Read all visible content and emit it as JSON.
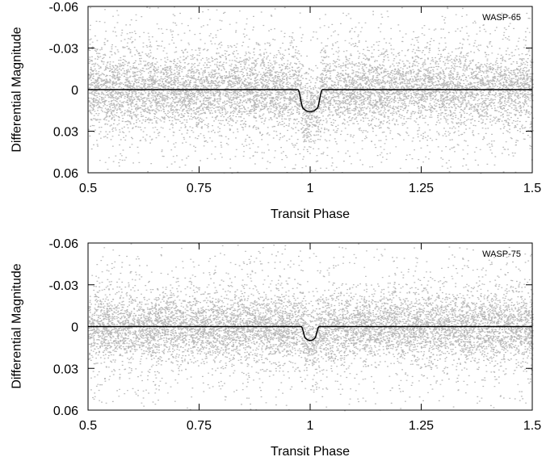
{
  "chart_data": [
    {
      "type": "scatter",
      "title": "",
      "panel_label": "WASP-65",
      "xlabel": "Transit Phase",
      "ylabel": "Differential Magnitude",
      "xlim": [
        0.5,
        1.5
      ],
      "ylim": [
        0.06,
        -0.06
      ],
      "y_inverted": true,
      "xticks": [
        0.5,
        0.75,
        1,
        1.25,
        1.5
      ],
      "xtick_labels": [
        "0.5",
        "0.75",
        "1",
        "1.25",
        "1.5"
      ],
      "yticks": [
        -0.06,
        -0.03,
        0,
        0.03,
        0.06
      ],
      "ytick_labels": [
        "-0.06",
        "-0.03",
        "0",
        "0.03",
        "0.06"
      ],
      "grid": false,
      "legend": "none",
      "series": [
        {
          "kind": "points",
          "description": "phase-folded photometry",
          "color": "#b8b8b8",
          "noise_core_sigma": 0.012,
          "noise_tail_fraction": 0.35,
          "noise_tail_sigma": 0.03
        },
        {
          "kind": "model",
          "description": "transit model",
          "color": "#000000",
          "center": 1.0,
          "depth": 0.016,
          "total_duration": 0.055,
          "ingress_duration": 0.012
        }
      ]
    },
    {
      "type": "scatter",
      "title": "",
      "panel_label": "WASP-75",
      "xlabel": "Transit Phase",
      "ylabel": "Differential Magnitude",
      "xlim": [
        0.5,
        1.5
      ],
      "ylim": [
        0.06,
        -0.06
      ],
      "y_inverted": true,
      "xticks": [
        0.5,
        0.75,
        1,
        1.25,
        1.5
      ],
      "xtick_labels": [
        "0.5",
        "0.75",
        "1",
        "1.25",
        "1.5"
      ],
      "yticks": [
        -0.06,
        -0.03,
        0,
        0.03,
        0.06
      ],
      "ytick_labels": [
        "-0.06",
        "-0.03",
        "0",
        "0.03",
        "0.06"
      ],
      "grid": false,
      "legend": "none",
      "series": [
        {
          "kind": "points",
          "description": "phase-folded photometry",
          "color": "#b8b8b8",
          "noise_core_sigma": 0.011,
          "noise_tail_fraction": 0.3,
          "noise_tail_sigma": 0.028
        },
        {
          "kind": "model",
          "description": "transit model",
          "color": "#000000",
          "center": 1.0,
          "depth": 0.01,
          "total_duration": 0.04,
          "ingress_duration": 0.01
        }
      ]
    }
  ]
}
